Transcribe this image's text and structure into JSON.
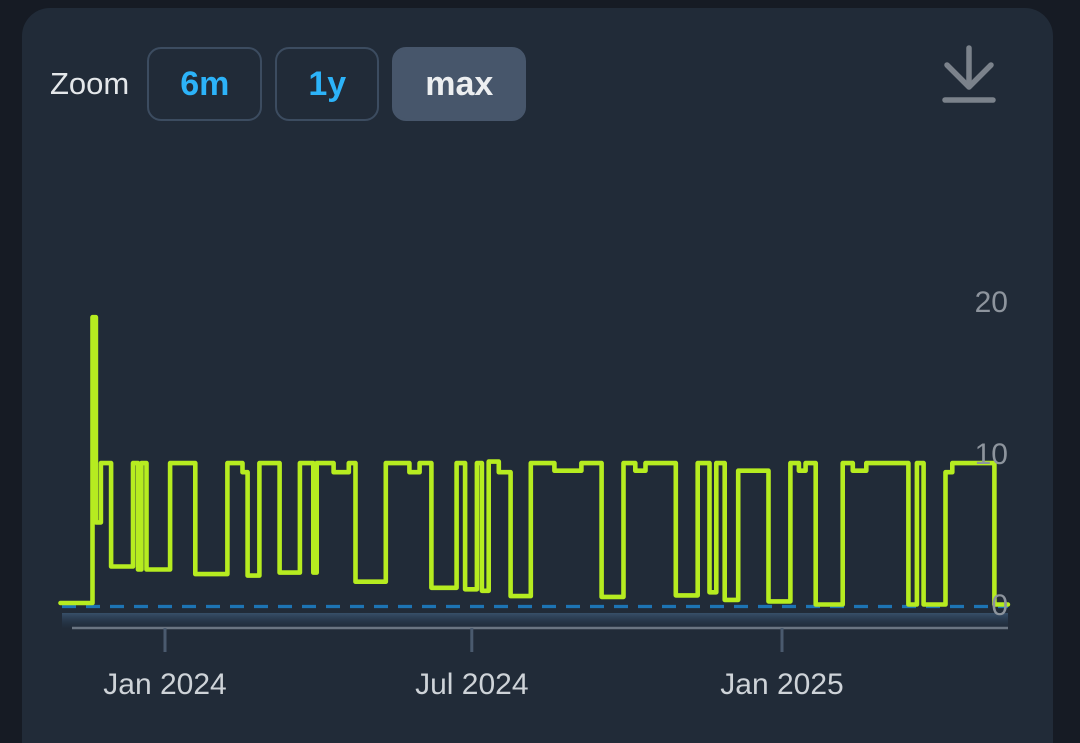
{
  "header": {
    "zoom_label": "Zoom",
    "range_buttons": [
      {
        "label": "6m",
        "selected": false
      },
      {
        "label": "1y",
        "selected": false
      },
      {
        "label": "max",
        "selected": true
      }
    ],
    "download_icon": "download-icon"
  },
  "colors": {
    "page_bg": "#161b24",
    "panel_bg": "#212b38",
    "accent_blue": "#2cb3f9",
    "selected_button_bg": "#47566b",
    "series_green": "#b6ec20",
    "plotline_blue": "#1d74b4",
    "axis_line_gray": "#6a7582",
    "tick_gray": "#4a5a6e",
    "y_label_gray": "#8d949d",
    "x_label_gray": "#ced3d8"
  },
  "chart_data": {
    "type": "line",
    "step": true,
    "title": "",
    "xlabel": "",
    "ylabel": "",
    "ylim": [
      0,
      21
    ],
    "grid": false,
    "legend": false,
    "yticks": [
      0,
      10,
      20
    ],
    "xticks": [
      {
        "date": "2024-01-01",
        "label": "Jan 2024"
      },
      {
        "date": "2024-07-01",
        "label": "Jul 2024"
      },
      {
        "date": "2025-01-01",
        "label": "Jan 2025"
      }
    ],
    "plotline": {
      "value": 0,
      "style": "dashed",
      "color": "#1d74b4"
    },
    "x_range": [
      "2023-10-31",
      "2025-05-15"
    ],
    "series": [
      {
        "name": "value",
        "color": "#b6ec20",
        "points": [
          [
            "2023-10-31",
            0.2
          ],
          [
            "2023-11-19",
            19
          ],
          [
            "2023-11-21",
            5.5
          ],
          [
            "2023-11-24",
            9.4
          ],
          [
            "2023-11-30",
            2.6
          ],
          [
            "2023-12-13",
            9.4
          ],
          [
            "2023-12-16",
            2.4
          ],
          [
            "2023-12-18",
            9.4
          ],
          [
            "2023-12-21",
            2.4
          ],
          [
            "2024-01-04",
            9.4
          ],
          [
            "2024-01-19",
            2.1
          ],
          [
            "2024-02-07",
            9.4
          ],
          [
            "2024-02-16",
            8.8
          ],
          [
            "2024-02-19",
            2.0
          ],
          [
            "2024-02-26",
            9.4
          ],
          [
            "2024-03-09",
            2.2
          ],
          [
            "2024-03-21",
            9.4
          ],
          [
            "2024-03-29",
            2.2
          ],
          [
            "2024-03-31",
            9.4
          ],
          [
            "2024-04-10",
            8.8
          ],
          [
            "2024-04-19",
            9.4
          ],
          [
            "2024-04-23",
            1.6
          ],
          [
            "2024-05-11",
            9.4
          ],
          [
            "2024-05-25",
            8.8
          ],
          [
            "2024-05-31",
            9.4
          ],
          [
            "2024-06-07",
            1.2
          ],
          [
            "2024-06-22",
            9.4
          ],
          [
            "2024-06-27",
            1.1
          ],
          [
            "2024-07-04",
            9.4
          ],
          [
            "2024-07-07",
            1.0
          ],
          [
            "2024-07-11",
            9.5
          ],
          [
            "2024-07-17",
            8.8
          ],
          [
            "2024-07-24",
            0.65
          ],
          [
            "2024-08-05",
            9.4
          ],
          [
            "2024-08-19",
            8.9
          ],
          [
            "2024-09-04",
            9.4
          ],
          [
            "2024-09-16",
            0.6
          ],
          [
            "2024-09-29",
            9.4
          ],
          [
            "2024-10-06",
            8.9
          ],
          [
            "2024-10-12",
            9.4
          ],
          [
            "2024-10-30",
            0.7
          ],
          [
            "2024-11-12",
            9.4
          ],
          [
            "2024-11-19",
            0.9
          ],
          [
            "2024-11-23",
            9.4
          ],
          [
            "2024-11-28",
            0.4
          ],
          [
            "2024-12-06",
            8.9
          ],
          [
            "2024-12-24",
            0.3
          ],
          [
            "2025-01-06",
            9.4
          ],
          [
            "2025-01-11",
            8.9
          ],
          [
            "2025-01-15",
            9.4
          ],
          [
            "2025-01-21",
            0.1
          ],
          [
            "2025-02-06",
            9.4
          ],
          [
            "2025-02-12",
            8.9
          ],
          [
            "2025-02-20",
            9.4
          ],
          [
            "2025-03-17",
            0.1
          ],
          [
            "2025-03-22",
            9.4
          ],
          [
            "2025-03-26",
            0.1
          ],
          [
            "2025-04-08",
            8.8
          ],
          [
            "2025-04-12",
            9.4
          ],
          [
            "2025-05-07",
            0.1
          ]
        ]
      }
    ]
  }
}
